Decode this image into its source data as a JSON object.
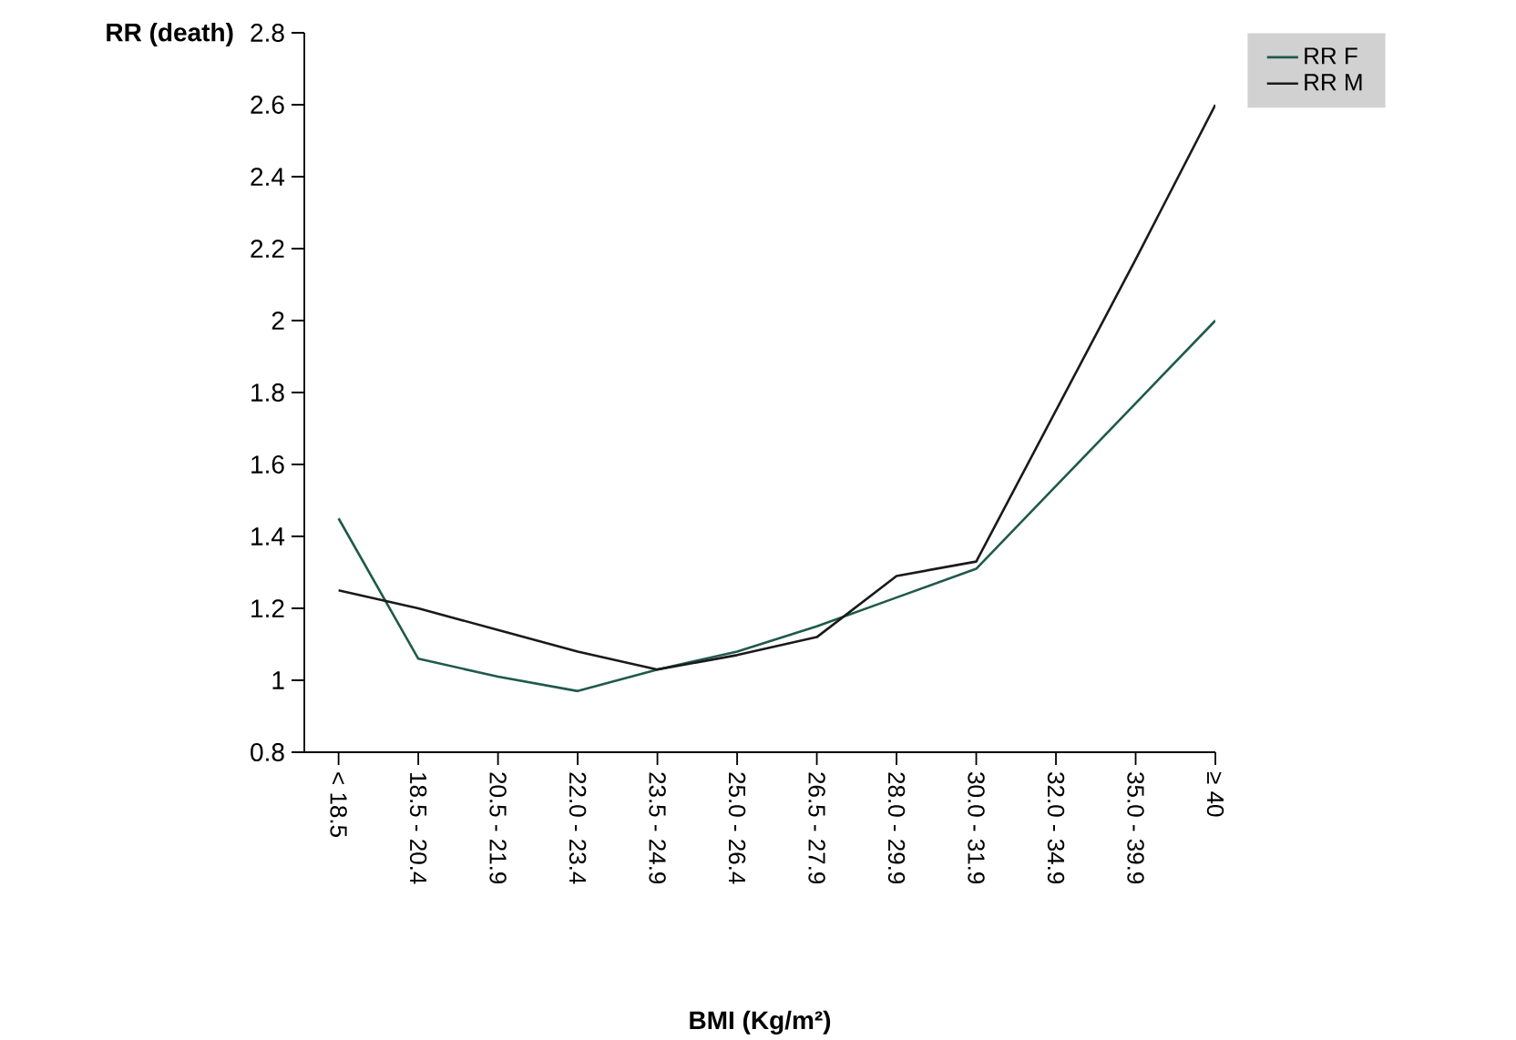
{
  "chart_data": {
    "type": "line",
    "xlabel": "BMI (Kg/m²)",
    "ylabel": "RR (death)",
    "categories": [
      "< 18.5",
      "18.5 - 20.4",
      "20.5 - 21.9",
      "22.0 - 23.4",
      "23.5 - 24.9",
      "25.0 - 26.4",
      "26.5 - 27.9",
      "28.0 - 29.9",
      "30.0 - 31.9",
      "32.0 - 34.9",
      "35.0 - 39.9",
      "≥ 40"
    ],
    "series": [
      {
        "name": "RR F",
        "color": "#1f5a4a",
        "values": [
          1.45,
          1.06,
          1.01,
          0.97,
          1.03,
          1.08,
          1.15,
          1.23,
          1.31,
          1.54,
          1.77,
          2.0
        ]
      },
      {
        "name": "RR M",
        "color": "#1a1a1a",
        "values": [
          1.25,
          1.2,
          1.14,
          1.08,
          1.03,
          1.07,
          1.12,
          1.29,
          1.33,
          1.75,
          2.17,
          2.6
        ]
      }
    ],
    "ylim": [
      0.8,
      2.8
    ],
    "yticks": [
      0.8,
      1,
      1.2,
      1.4,
      1.6,
      1.8,
      2,
      2.2,
      2.4,
      2.6,
      2.8
    ],
    "grid": false,
    "legend": "top right",
    "marker": "none",
    "line_style": "solid"
  }
}
